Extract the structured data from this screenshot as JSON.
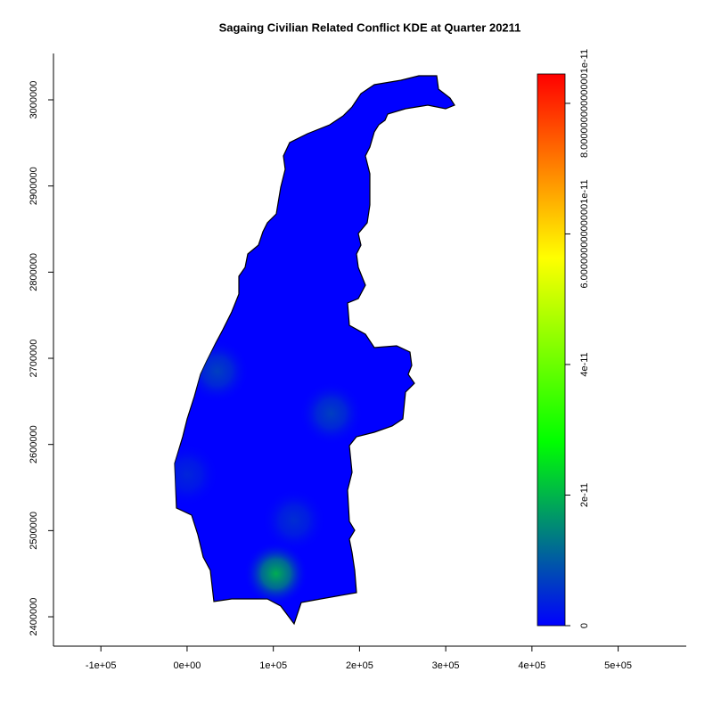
{
  "chart_data": {
    "type": "raster-map",
    "title": "Sagaing Civilian Related Conflict KDE at Quarter 20211",
    "xlim": [
      -155000,
      579000
    ],
    "xticks": [
      {
        "value": -100000,
        "label": "-1e+05"
      },
      {
        "value": 0,
        "label": "0e+00"
      },
      {
        "value": 100000,
        "label": "1e+05"
      },
      {
        "value": 200000,
        "label": "2e+05"
      },
      {
        "value": 300000,
        "label": "3e+05"
      },
      {
        "value": 400000,
        "label": "4e+05"
      },
      {
        "value": 500000,
        "label": "5e+05"
      }
    ],
    "ylim": [
      2365900,
      3053800
    ],
    "yticks": [
      2400000,
      2500000,
      2600000,
      2700000,
      2800000,
      2900000,
      3000000
    ],
    "zlim": [
      0,
      8.45e-11
    ],
    "zticks": [
      0,
      {
        "value": 2e-11,
        "label": "2e-11"
      },
      {
        "value": 4e-11,
        "label": "4e-11"
      },
      {
        "value": 6e-11,
        "label": "6.000000000000001e-11"
      },
      {
        "value": 8e-11,
        "label": "8.000000000000001e-11"
      }
    ],
    "colors": [
      "#0000ff",
      "#00ff00",
      "#ffff00",
      "#ff0000"
    ],
    "hotspots": [
      {
        "x": 103000,
        "y": 2450000,
        "value": 1.9e-11
      },
      {
        "x": 35000,
        "y": 2685000,
        "value": 7e-12
      },
      {
        "x": 167000,
        "y": 2636000,
        "value": 7e-12
      },
      {
        "x": 124000,
        "y": 2512000,
        "value": 5e-12
      },
      {
        "x": 0,
        "y": 2565000,
        "value": 4e-12
      }
    ]
  }
}
